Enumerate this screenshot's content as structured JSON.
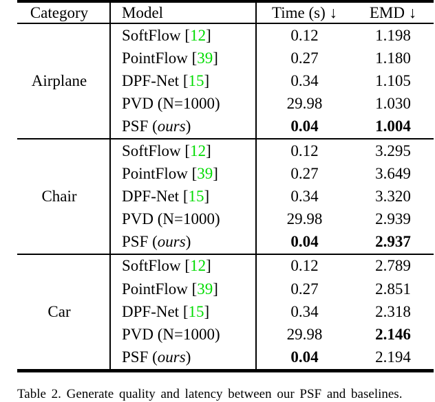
{
  "table": {
    "headers": {
      "category": "Category",
      "model": "Model",
      "time": "Time (s) ↓",
      "emd": "EMD ↓"
    },
    "sections": [
      {
        "category": "Airplane",
        "rows": [
          {
            "model": "SoftFlow",
            "cite": "12",
            "ours": false,
            "time": "0.12",
            "emd": "1.198",
            "time_bold": false,
            "emd_bold": false
          },
          {
            "model": "PointFlow",
            "cite": "39",
            "ours": false,
            "time": "0.27",
            "emd": "1.180",
            "time_bold": false,
            "emd_bold": false
          },
          {
            "model": "DPF-Net",
            "cite": "15",
            "ours": false,
            "time": "0.34",
            "emd": "1.105",
            "time_bold": false,
            "emd_bold": false
          },
          {
            "model": "PVD (N=1000)",
            "cite": null,
            "ours": false,
            "time": "29.98",
            "emd": "1.030",
            "time_bold": false,
            "emd_bold": false
          },
          {
            "model": "PSF",
            "cite": null,
            "ours": true,
            "time": "0.04",
            "emd": "1.004",
            "time_bold": true,
            "emd_bold": true
          }
        ]
      },
      {
        "category": "Chair",
        "rows": [
          {
            "model": "SoftFlow",
            "cite": "12",
            "ours": false,
            "time": "0.12",
            "emd": "3.295",
            "time_bold": false,
            "emd_bold": false
          },
          {
            "model": "PointFlow",
            "cite": "39",
            "ours": false,
            "time": "0.27",
            "emd": "3.649",
            "time_bold": false,
            "emd_bold": false
          },
          {
            "model": "DPF-Net",
            "cite": "15",
            "ours": false,
            "time": "0.34",
            "emd": "3.320",
            "time_bold": false,
            "emd_bold": false
          },
          {
            "model": "PVD (N=1000)",
            "cite": null,
            "ours": false,
            "time": "29.98",
            "emd": "2.939",
            "time_bold": false,
            "emd_bold": false
          },
          {
            "model": "PSF",
            "cite": null,
            "ours": true,
            "time": "0.04",
            "emd": "2.937",
            "time_bold": true,
            "emd_bold": true
          }
        ]
      },
      {
        "category": "Car",
        "rows": [
          {
            "model": "SoftFlow",
            "cite": "12",
            "ours": false,
            "time": "0.12",
            "emd": "2.789",
            "time_bold": false,
            "emd_bold": false
          },
          {
            "model": "PointFlow",
            "cite": "39",
            "ours": false,
            "time": "0.27",
            "emd": "2.851",
            "time_bold": false,
            "emd_bold": false
          },
          {
            "model": "DPF-Net",
            "cite": "15",
            "ours": false,
            "time": "0.34",
            "emd": "2.318",
            "time_bold": false,
            "emd_bold": false
          },
          {
            "model": "PVD (N=1000)",
            "cite": null,
            "ours": false,
            "time": "29.98",
            "emd": "2.146",
            "time_bold": false,
            "emd_bold": true
          },
          {
            "model": "PSF",
            "cite": null,
            "ours": true,
            "time": "0.04",
            "emd": "2.194",
            "time_bold": true,
            "emd_bold": false
          }
        ]
      }
    ],
    "ours_suffix": "ours",
    "bracket_open": "[",
    "bracket_close": "]",
    "paren_open": "(",
    "paren_close": ")"
  },
  "caption": "Table 2. Generate quality and latency between our PSF and baselines.",
  "colors": {
    "citation_green": "#00DC00",
    "rule_black": "#000000",
    "background": "#ffffff"
  }
}
